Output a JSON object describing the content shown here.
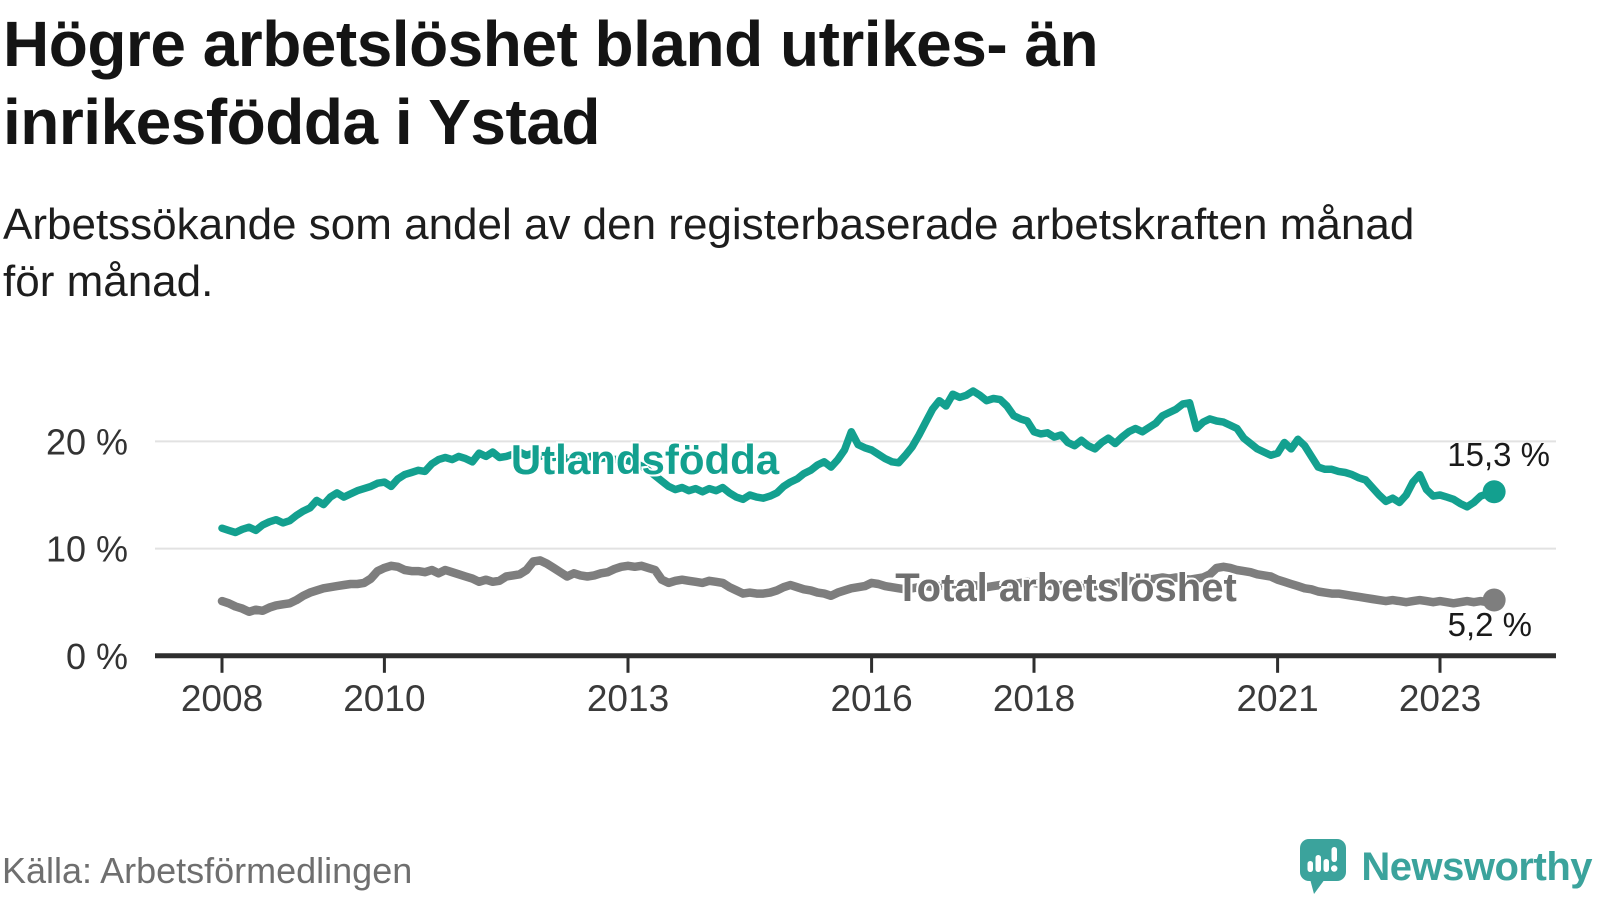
{
  "title": {
    "line1": "Högre arbetslöshet bland utrikes- än",
    "line2": "inrikesfödda i Ystad",
    "full": "Högre arbetslöshet bland utrikes- än inrikesfödda i Ystad"
  },
  "subtitle": {
    "line1": "Arbetssökande som andel av den registerbaserade arbetskraften månad",
    "line2": "för månad.",
    "full": "Arbetssökande som andel av den registerbaserade arbetskraften månad för månad."
  },
  "source": "Källa: Arbetsförmedlingen",
  "logo": {
    "name": "Newsworthy",
    "icon": "newsworthy-speech-bubble-bar-chart-icon",
    "color": "#3ba39c"
  },
  "colors": {
    "series_utlandsfodda": "#13a08f",
    "series_total": "#7e7e7e",
    "total_label_text": "#6f6f6f",
    "axis": "#2e2e2e",
    "gridline": "#e2e2e2",
    "tick_label": "#3a3a3a",
    "y_label": "#333333",
    "end_value_text": "#1a1a1a",
    "background": "#ffffff"
  },
  "chart_data": {
    "type": "line",
    "title": "Högre arbetslöshet bland utrikes- än inrikesfödda i Ystad",
    "subtitle": "Arbetssökande som andel av den registerbaserade arbetskraften månad för månad.",
    "unit": "%",
    "frequency": "monthly",
    "x_start": "2008-01",
    "x_end": "2023-09",
    "ylim": [
      0,
      26
    ],
    "grid": "horizontal",
    "legend_position": "inline-labels",
    "y_ticks": [
      {
        "value": 0,
        "label": "0 %"
      },
      {
        "value": 10,
        "label": "10 %"
      },
      {
        "value": 20,
        "label": "20 %"
      }
    ],
    "x_ticks": [
      {
        "year": 2008,
        "label": "2008"
      },
      {
        "year": 2010,
        "label": "2010"
      },
      {
        "year": 2013,
        "label": "2013"
      },
      {
        "year": 2016,
        "label": "2016"
      },
      {
        "year": 2018,
        "label": "2018"
      },
      {
        "year": 2021,
        "label": "2021"
      },
      {
        "year": 2023,
        "label": "2023"
      }
    ],
    "series": [
      {
        "id": "utlandsfodda",
        "label": "Utlandsfödda",
        "color": "#13a08f",
        "end_value": 15.3,
        "end_label": "15,3 %",
        "values": [
          11.9,
          11.7,
          11.5,
          11.8,
          12.0,
          11.7,
          12.2,
          12.5,
          12.7,
          12.4,
          12.6,
          13.1,
          13.5,
          13.8,
          14.5,
          14.1,
          14.8,
          15.2,
          14.8,
          15.1,
          15.4,
          15.6,
          15.8,
          16.1,
          16.2,
          15.8,
          16.5,
          16.9,
          17.1,
          17.3,
          17.2,
          17.9,
          18.3,
          18.5,
          18.3,
          18.6,
          18.4,
          18.1,
          18.9,
          18.6,
          19.0,
          18.5,
          18.6,
          18.8,
          19.0,
          18.7,
          18.9,
          18.6,
          18.8,
          18.5,
          18.7,
          18.4,
          18.6,
          18.3,
          18.5,
          18.7,
          18.4,
          18.5,
          18.3,
          18.4,
          18.2,
          18.0,
          17.7,
          17.3,
          16.8,
          16.3,
          15.8,
          15.5,
          15.7,
          15.4,
          15.6,
          15.3,
          15.6,
          15.4,
          15.7,
          15.2,
          14.8,
          14.6,
          15.0,
          14.8,
          14.7,
          14.9,
          15.2,
          15.8,
          16.2,
          16.5,
          17.0,
          17.3,
          17.8,
          18.1,
          17.6,
          18.3,
          19.2,
          20.9,
          19.7,
          19.4,
          19.2,
          18.8,
          18.4,
          18.1,
          18.0,
          18.7,
          19.5,
          20.6,
          21.8,
          23.0,
          23.8,
          23.3,
          24.4,
          24.1,
          24.3,
          24.7,
          24.3,
          23.8,
          24.0,
          23.9,
          23.3,
          22.4,
          22.1,
          21.9,
          20.9,
          20.7,
          20.8,
          20.4,
          20.6,
          19.9,
          19.6,
          20.1,
          19.6,
          19.3,
          19.9,
          20.3,
          19.8,
          20.4,
          20.9,
          21.2,
          20.9,
          21.3,
          21.7,
          22.4,
          22.7,
          23.0,
          23.5,
          23.6,
          21.2,
          21.8,
          22.1,
          21.9,
          21.8,
          21.5,
          21.2,
          20.3,
          19.8,
          19.3,
          19.0,
          18.7,
          18.9,
          19.9,
          19.3,
          20.2,
          19.6,
          18.6,
          17.6,
          17.4,
          17.4,
          17.2,
          17.1,
          16.9,
          16.6,
          16.4,
          15.7,
          15.0,
          14.4,
          14.7,
          14.3,
          15.0,
          16.2,
          16.9,
          15.5,
          14.9,
          15.0,
          14.8,
          14.6,
          14.2,
          13.9,
          14.3,
          14.9,
          15.1,
          15.3
        ]
      },
      {
        "id": "total",
        "label": "Total arbetslöshet",
        "color": "#7e7e7e",
        "end_value": 5.2,
        "end_label": "5,2 %",
        "values": [
          5.1,
          4.9,
          4.6,
          4.4,
          4.1,
          4.3,
          4.2,
          4.5,
          4.7,
          4.8,
          4.9,
          5.2,
          5.6,
          5.9,
          6.1,
          6.3,
          6.4,
          6.5,
          6.6,
          6.7,
          6.7,
          6.8,
          7.2,
          7.9,
          8.2,
          8.4,
          8.3,
          8.0,
          7.9,
          7.9,
          7.8,
          8.0,
          7.7,
          8.0,
          7.8,
          7.6,
          7.4,
          7.2,
          6.9,
          7.1,
          6.9,
          7.0,
          7.4,
          7.5,
          7.6,
          8.0,
          8.8,
          8.9,
          8.6,
          8.2,
          7.8,
          7.4,
          7.7,
          7.5,
          7.4,
          7.5,
          7.7,
          7.8,
          8.1,
          8.3,
          8.4,
          8.3,
          8.4,
          8.2,
          8.0,
          7.1,
          6.8,
          7.0,
          7.1,
          7.0,
          6.9,
          6.8,
          7.0,
          6.9,
          6.8,
          6.4,
          6.1,
          5.8,
          5.9,
          5.8,
          5.8,
          5.9,
          6.1,
          6.4,
          6.6,
          6.4,
          6.2,
          6.1,
          5.9,
          5.8,
          5.6,
          5.9,
          6.1,
          6.3,
          6.4,
          6.5,
          6.8,
          6.7,
          6.5,
          6.4,
          6.3,
          6.2,
          6.3,
          6.4,
          6.5,
          6.4,
          6.5,
          6.6,
          6.7,
          6.6,
          6.5,
          6.6,
          6.5,
          6.4,
          6.5,
          6.6,
          6.6,
          6.7,
          6.8,
          6.9,
          6.8,
          6.7,
          6.6,
          6.5,
          6.6,
          6.5,
          6.4,
          6.5,
          6.6,
          6.5,
          6.6,
          6.7,
          6.8,
          6.9,
          7.0,
          6.9,
          7.0,
          7.1,
          7.2,
          7.3,
          7.2,
          7.3,
          7.2,
          7.1,
          7.2,
          7.3,
          7.6,
          8.2,
          8.3,
          8.2,
          8.0,
          7.9,
          7.8,
          7.6,
          7.5,
          7.4,
          7.1,
          6.9,
          6.7,
          6.5,
          6.3,
          6.2,
          6.0,
          5.9,
          5.8,
          5.8,
          5.7,
          5.6,
          5.5,
          5.4,
          5.3,
          5.2,
          5.1,
          5.2,
          5.1,
          5.0,
          5.1,
          5.2,
          5.1,
          5.0,
          5.1,
          5.0,
          4.9,
          5.0,
          5.1,
          5.0,
          5.1,
          5.0,
          5.2
        ]
      }
    ]
  }
}
